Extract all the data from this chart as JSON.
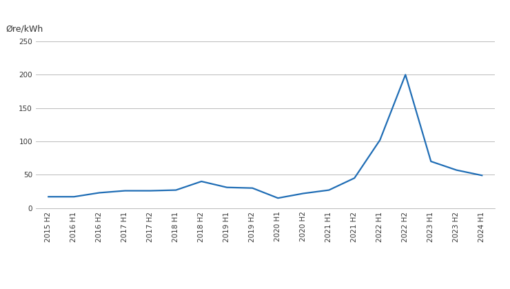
{
  "labels": [
    "2015 H2",
    "2016 H1",
    "2016 H2",
    "2017 H1",
    "2017 H2",
    "2018 H1",
    "2018 H2",
    "2019 H1",
    "2019 H2",
    "2020 H1",
    "2020 H2",
    "2021 H1",
    "2021 H2",
    "2022 H1",
    "2022 H2",
    "2023 H1",
    "2023 H2",
    "2024 H1"
  ],
  "values": [
    17,
    17,
    23,
    26,
    26,
    27,
    40,
    31,
    30,
    15,
    22,
    27,
    45,
    102,
    200,
    70,
    57,
    49
  ],
  "line_color": "#1f6db5",
  "line_width": 1.6,
  "ylabel": "Øre/kWh",
  "ylim": [
    0,
    260
  ],
  "yticks": [
    0,
    50,
    100,
    150,
    200,
    250
  ],
  "grid_color": "#b0b0b0",
  "grid_linewidth": 0.6,
  "bg_color": "#ffffff",
  "tick_label_fontsize": 7.5,
  "ylabel_fontsize": 9
}
